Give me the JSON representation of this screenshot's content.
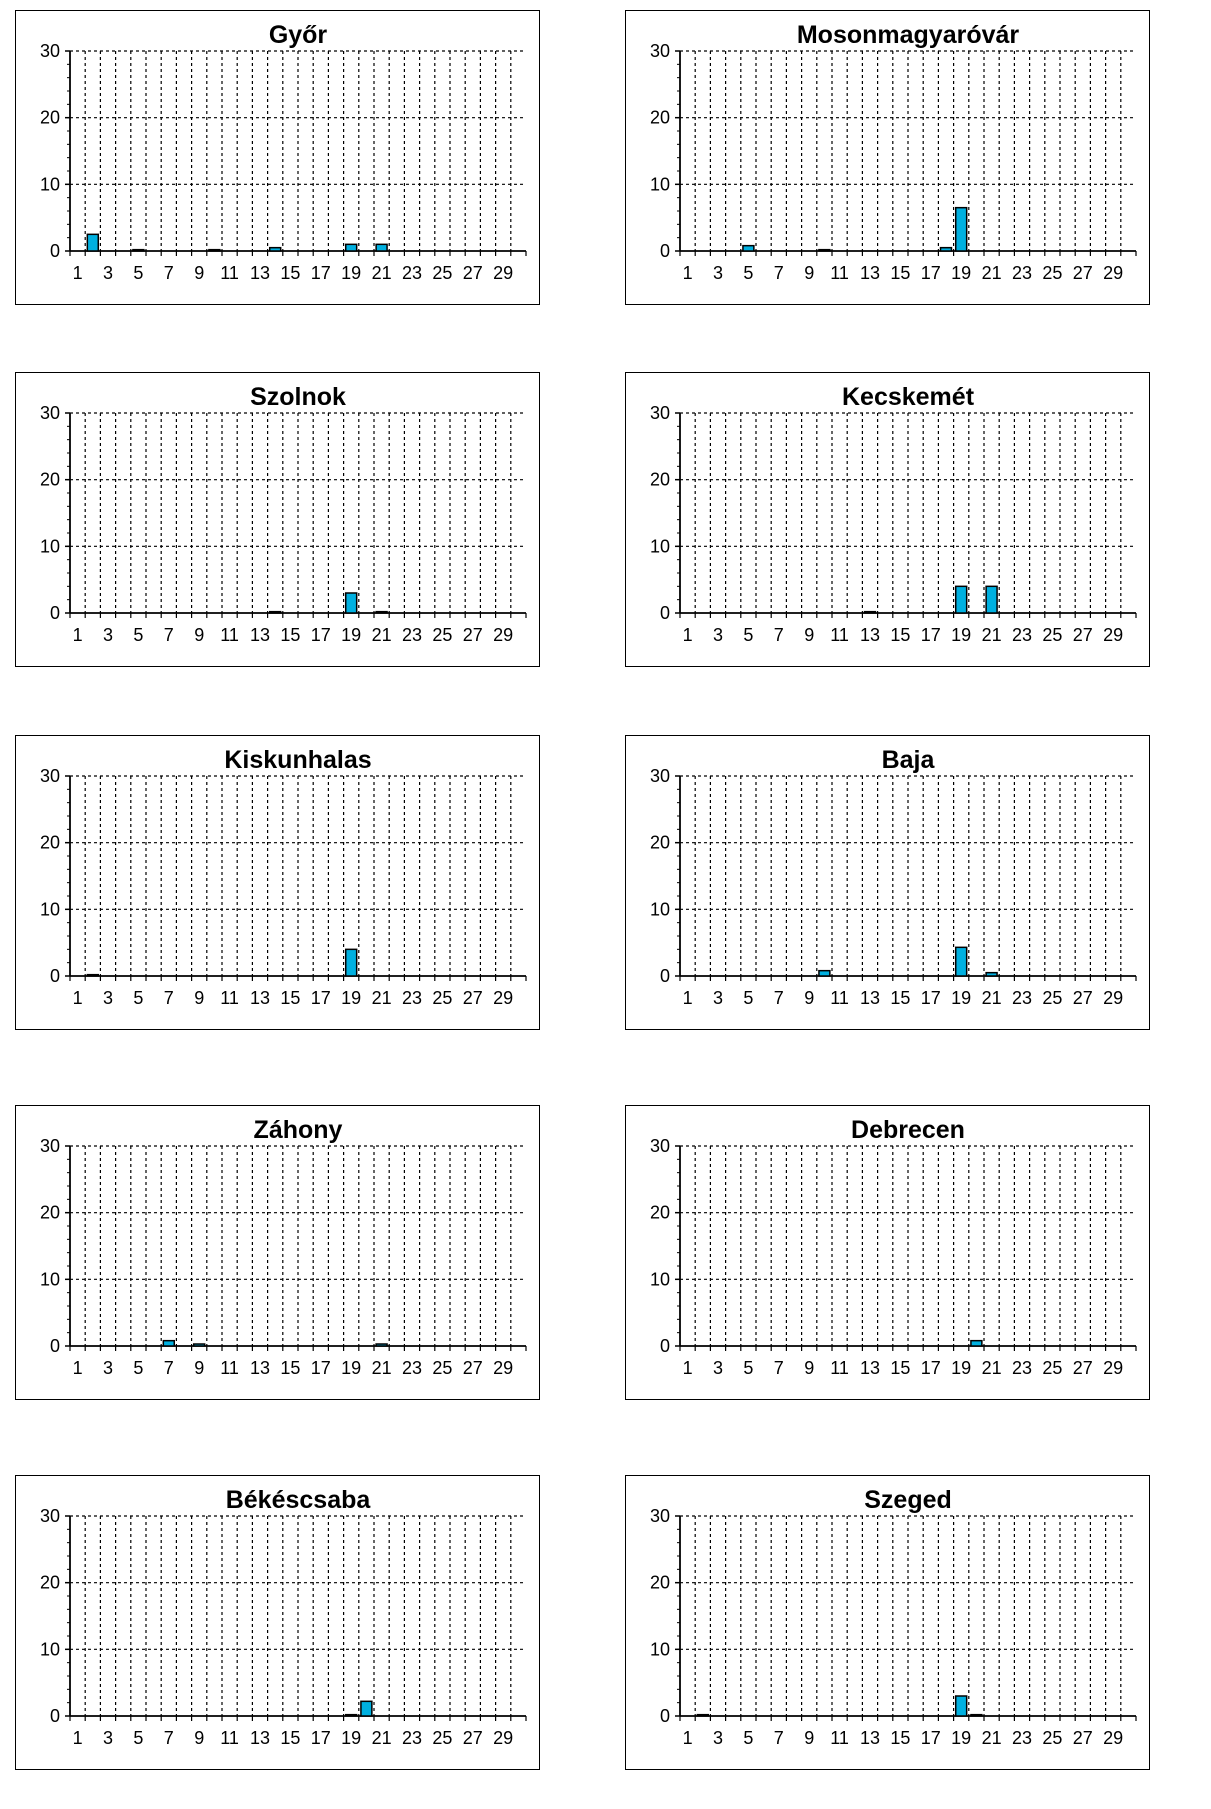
{
  "chart_data": [
    {
      "type": "bar",
      "title": "Győr",
      "ylim": [
        0,
        30
      ],
      "y_ticks": [
        0,
        10,
        20,
        30
      ],
      "x": [
        1,
        2,
        3,
        4,
        5,
        6,
        7,
        8,
        9,
        10,
        11,
        12,
        13,
        14,
        15,
        16,
        17,
        18,
        19,
        20,
        21,
        22,
        23,
        24,
        25,
        26,
        27,
        28,
        29,
        30
      ],
      "x_tick_labels": [
        "1",
        "3",
        "5",
        "7",
        "9",
        "11",
        "13",
        "15",
        "17",
        "19",
        "21",
        "23",
        "25",
        "27",
        "29"
      ],
      "values": [
        0,
        2.5,
        0,
        0,
        0.2,
        0,
        0,
        0,
        0,
        0.2,
        0,
        0,
        0,
        0.5,
        0,
        0,
        0,
        0,
        1,
        0,
        1,
        0,
        0,
        0,
        0,
        0,
        0,
        0,
        0,
        0
      ],
      "grid": true,
      "bar_color": "#00b0e0"
    },
    {
      "type": "bar",
      "title": "Mosonmagyaróvár",
      "ylim": [
        0,
        30
      ],
      "y_ticks": [
        0,
        10,
        20,
        30
      ],
      "x": [
        1,
        2,
        3,
        4,
        5,
        6,
        7,
        8,
        9,
        10,
        11,
        12,
        13,
        14,
        15,
        16,
        17,
        18,
        19,
        20,
        21,
        22,
        23,
        24,
        25,
        26,
        27,
        28,
        29,
        30
      ],
      "x_tick_labels": [
        "1",
        "3",
        "5",
        "7",
        "9",
        "11",
        "13",
        "15",
        "17",
        "19",
        "21",
        "23",
        "25",
        "27",
        "29"
      ],
      "values": [
        0,
        0,
        0,
        0,
        0.8,
        0,
        0,
        0,
        0,
        0.2,
        0,
        0,
        0,
        0,
        0,
        0,
        0,
        0.5,
        6.5,
        0,
        0,
        0,
        0,
        0,
        0,
        0,
        0,
        0,
        0,
        0
      ],
      "grid": true,
      "bar_color": "#00b0e0"
    },
    {
      "type": "bar",
      "title": "Szolnok",
      "ylim": [
        0,
        30
      ],
      "y_ticks": [
        0,
        10,
        20,
        30
      ],
      "x": [
        1,
        2,
        3,
        4,
        5,
        6,
        7,
        8,
        9,
        10,
        11,
        12,
        13,
        14,
        15,
        16,
        17,
        18,
        19,
        20,
        21,
        22,
        23,
        24,
        25,
        26,
        27,
        28,
        29,
        30
      ],
      "x_tick_labels": [
        "1",
        "3",
        "5",
        "7",
        "9",
        "11",
        "13",
        "15",
        "17",
        "19",
        "21",
        "23",
        "25",
        "27",
        "29"
      ],
      "values": [
        0,
        0,
        0,
        0,
        0,
        0,
        0,
        0,
        0,
        0,
        0,
        0,
        0,
        0.2,
        0,
        0,
        0,
        0,
        3,
        0,
        0.2,
        0,
        0,
        0,
        0,
        0,
        0,
        0,
        0,
        0
      ],
      "grid": true,
      "bar_color": "#00b0e0"
    },
    {
      "type": "bar",
      "title": "Kecskemét",
      "ylim": [
        0,
        30
      ],
      "y_ticks": [
        0,
        10,
        20,
        30
      ],
      "x": [
        1,
        2,
        3,
        4,
        5,
        6,
        7,
        8,
        9,
        10,
        11,
        12,
        13,
        14,
        15,
        16,
        17,
        18,
        19,
        20,
        21,
        22,
        23,
        24,
        25,
        26,
        27,
        28,
        29,
        30
      ],
      "x_tick_labels": [
        "1",
        "3",
        "5",
        "7",
        "9",
        "11",
        "13",
        "15",
        "17",
        "19",
        "21",
        "23",
        "25",
        "27",
        "29"
      ],
      "values": [
        0,
        0,
        0,
        0,
        0,
        0,
        0,
        0,
        0,
        0,
        0,
        0,
        0.2,
        0,
        0,
        0,
        0,
        0,
        4,
        0,
        4,
        0,
        0,
        0,
        0,
        0,
        0,
        0,
        0,
        0
      ],
      "grid": true,
      "bar_color": "#00b0e0"
    },
    {
      "type": "bar",
      "title": "Kiskunhalas",
      "ylim": [
        0,
        30
      ],
      "y_ticks": [
        0,
        10,
        20,
        30
      ],
      "x": [
        1,
        2,
        3,
        4,
        5,
        6,
        7,
        8,
        9,
        10,
        11,
        12,
        13,
        14,
        15,
        16,
        17,
        18,
        19,
        20,
        21,
        22,
        23,
        24,
        25,
        26,
        27,
        28,
        29,
        30
      ],
      "x_tick_labels": [
        "1",
        "3",
        "5",
        "7",
        "9",
        "11",
        "13",
        "15",
        "17",
        "19",
        "21",
        "23",
        "25",
        "27",
        "29"
      ],
      "values": [
        0,
        0.2,
        0,
        0,
        0,
        0,
        0,
        0,
        0,
        0,
        0,
        0,
        0,
        0,
        0,
        0,
        0,
        0,
        4,
        0,
        0,
        0,
        0,
        0,
        0,
        0,
        0,
        0,
        0,
        0
      ],
      "grid": true,
      "bar_color": "#00b0e0"
    },
    {
      "type": "bar",
      "title": "Baja",
      "ylim": [
        0,
        30
      ],
      "y_ticks": [
        0,
        10,
        20,
        30
      ],
      "x": [
        1,
        2,
        3,
        4,
        5,
        6,
        7,
        8,
        9,
        10,
        11,
        12,
        13,
        14,
        15,
        16,
        17,
        18,
        19,
        20,
        21,
        22,
        23,
        24,
        25,
        26,
        27,
        28,
        29,
        30
      ],
      "x_tick_labels": [
        "1",
        "3",
        "5",
        "7",
        "9",
        "11",
        "13",
        "15",
        "17",
        "19",
        "21",
        "23",
        "25",
        "27",
        "29"
      ],
      "values": [
        0,
        0,
        0,
        0,
        0,
        0,
        0,
        0,
        0,
        0.8,
        0,
        0,
        0,
        0,
        0,
        0,
        0,
        0,
        4.3,
        0,
        0.5,
        0,
        0,
        0,
        0,
        0,
        0,
        0,
        0,
        0
      ],
      "grid": true,
      "bar_color": "#00b0e0"
    },
    {
      "type": "bar",
      "title": "Záhony",
      "ylim": [
        0,
        30
      ],
      "y_ticks": [
        0,
        10,
        20,
        30
      ],
      "x": [
        1,
        2,
        3,
        4,
        5,
        6,
        7,
        8,
        9,
        10,
        11,
        12,
        13,
        14,
        15,
        16,
        17,
        18,
        19,
        20,
        21,
        22,
        23,
        24,
        25,
        26,
        27,
        28,
        29,
        30
      ],
      "x_tick_labels": [
        "1",
        "3",
        "5",
        "7",
        "9",
        "11",
        "13",
        "15",
        "17",
        "19",
        "21",
        "23",
        "25",
        "27",
        "29"
      ],
      "values": [
        0,
        0,
        0,
        0,
        0,
        0,
        0.8,
        0,
        0.3,
        0,
        0,
        0,
        0,
        0,
        0,
        0,
        0,
        0,
        0,
        0,
        0.3,
        0,
        0,
        0,
        0,
        0,
        0,
        0,
        0,
        0
      ],
      "grid": true,
      "bar_color": "#00b0e0"
    },
    {
      "type": "bar",
      "title": "Debrecen",
      "ylim": [
        0,
        30
      ],
      "y_ticks": [
        0,
        10,
        20,
        30
      ],
      "x": [
        1,
        2,
        3,
        4,
        5,
        6,
        7,
        8,
        9,
        10,
        11,
        12,
        13,
        14,
        15,
        16,
        17,
        18,
        19,
        20,
        21,
        22,
        23,
        24,
        25,
        26,
        27,
        28,
        29,
        30
      ],
      "x_tick_labels": [
        "1",
        "3",
        "5",
        "7",
        "9",
        "11",
        "13",
        "15",
        "17",
        "19",
        "21",
        "23",
        "25",
        "27",
        "29"
      ],
      "values": [
        0,
        0,
        0,
        0,
        0,
        0,
        0,
        0,
        0,
        0,
        0,
        0,
        0,
        0,
        0,
        0,
        0,
        0,
        0,
        0.8,
        0,
        0,
        0,
        0,
        0,
        0,
        0,
        0,
        0,
        0
      ],
      "grid": true,
      "bar_color": "#00b0e0"
    },
    {
      "type": "bar",
      "title": "Békéscsaba",
      "ylim": [
        0,
        30
      ],
      "y_ticks": [
        0,
        10,
        20,
        30
      ],
      "x": [
        1,
        2,
        3,
        4,
        5,
        6,
        7,
        8,
        9,
        10,
        11,
        12,
        13,
        14,
        15,
        16,
        17,
        18,
        19,
        20,
        21,
        22,
        23,
        24,
        25,
        26,
        27,
        28,
        29,
        30
      ],
      "x_tick_labels": [
        "1",
        "3",
        "5",
        "7",
        "9",
        "11",
        "13",
        "15",
        "17",
        "19",
        "21",
        "23",
        "25",
        "27",
        "29"
      ],
      "values": [
        0,
        0,
        0,
        0,
        0,
        0,
        0,
        0,
        0,
        0,
        0,
        0,
        0,
        0,
        0,
        0,
        0,
        0,
        0.2,
        2.2,
        0,
        0,
        0,
        0,
        0,
        0,
        0,
        0,
        0,
        0
      ],
      "grid": true,
      "bar_color": "#00b0e0"
    },
    {
      "type": "bar",
      "title": "Szeged",
      "ylim": [
        0,
        30
      ],
      "y_ticks": [
        0,
        10,
        20,
        30
      ],
      "x": [
        1,
        2,
        3,
        4,
        5,
        6,
        7,
        8,
        9,
        10,
        11,
        12,
        13,
        14,
        15,
        16,
        17,
        18,
        19,
        20,
        21,
        22,
        23,
        24,
        25,
        26,
        27,
        28,
        29,
        30
      ],
      "x_tick_labels": [
        "1",
        "3",
        "5",
        "7",
        "9",
        "11",
        "13",
        "15",
        "17",
        "19",
        "21",
        "23",
        "25",
        "27",
        "29"
      ],
      "values": [
        0,
        0.2,
        0,
        0,
        0,
        0,
        0,
        0,
        0,
        0,
        0,
        0,
        0,
        0,
        0,
        0,
        0,
        0,
        3,
        0.2,
        0,
        0,
        0,
        0,
        0,
        0,
        0,
        0,
        0,
        0
      ],
      "grid": true,
      "bar_color": "#00b0e0"
    }
  ]
}
